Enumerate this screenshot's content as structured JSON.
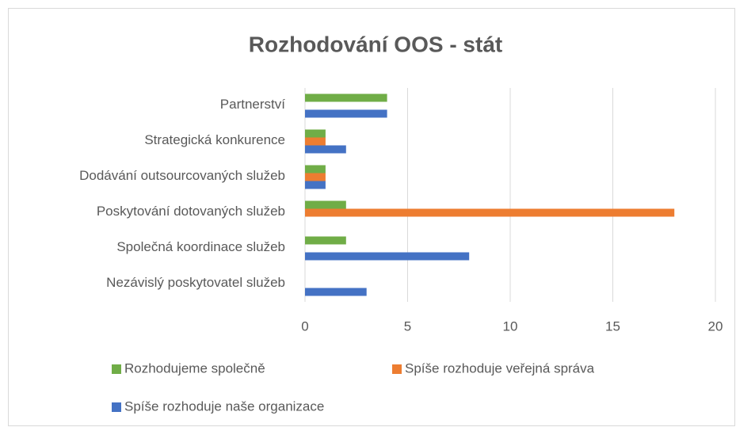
{
  "chart_data": {
    "type": "bar",
    "orientation": "horizontal",
    "title": "Rozhodování OOS - stát",
    "categories": [
      "Partnerství",
      "Strategická konkurence",
      "Dodávání outsourcovaných služeb",
      "Poskytování dotovaných služeb",
      "Společná koordinace služeb",
      "Nezávislý poskytovatel služeb"
    ],
    "series": [
      {
        "name": "Rozhodujeme společně",
        "color": "#70ad47",
        "values": [
          4,
          1,
          1,
          2,
          2,
          0
        ]
      },
      {
        "name": "Spíše rozhoduje veřejná správa",
        "color": "#ed7d31",
        "values": [
          0,
          1,
          1,
          18,
          0,
          0
        ]
      },
      {
        "name": "Spíše rozhoduje naše organizace",
        "color": "#4472c4",
        "values": [
          4,
          2,
          1,
          0,
          8,
          3
        ]
      }
    ],
    "xlim": [
      0,
      20
    ],
    "xticks": [
      0,
      5,
      10,
      15,
      20
    ],
    "grid": true,
    "legend": "bottom"
  }
}
